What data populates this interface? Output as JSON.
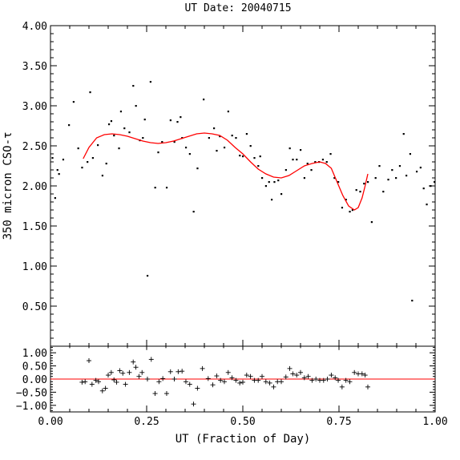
{
  "chart_data": [
    {
      "type": "scatter",
      "title": "UT Date: 20040715",
      "ylabel": "350 micron CSO-τ",
      "xlim": [
        0.0,
        1.0
      ],
      "ylim": [
        0.0,
        4.0
      ],
      "yticks": [
        "4.00",
        "3.50",
        "3.00",
        "2.50",
        "2.00",
        "1.50",
        "1.00",
        "0.50"
      ],
      "ytick_values": [
        4.0,
        3.5,
        3.0,
        2.5,
        2.0,
        1.5,
        1.0,
        0.5
      ],
      "colors": {
        "points": "#000000",
        "fit": "#ff0000"
      },
      "series": [
        {
          "type": "scatter",
          "points": [
            [
              0.005,
              2.35
            ],
            [
              0.012,
              1.85
            ],
            [
              0.018,
              2.2
            ],
            [
              0.022,
              2.15
            ],
            [
              0.033,
              2.33
            ],
            [
              0.048,
              2.76
            ],
            [
              0.06,
              3.05
            ],
            [
              0.072,
              2.47
            ],
            [
              0.082,
              2.23
            ],
            [
              0.096,
              2.3
            ],
            [
              0.103,
              3.17
            ],
            [
              0.11,
              2.35
            ],
            [
              0.123,
              2.51
            ],
            [
              0.135,
              2.13
            ],
            [
              0.145,
              2.28
            ],
            [
              0.152,
              2.77
            ],
            [
              0.158,
              2.81
            ],
            [
              0.165,
              2.63
            ],
            [
              0.178,
              2.47
            ],
            [
              0.183,
              2.93
            ],
            [
              0.192,
              2.72
            ],
            [
              0.205,
              2.67
            ],
            [
              0.215,
              3.25
            ],
            [
              0.222,
              3.0
            ],
            [
              0.232,
              2.57
            ],
            [
              0.24,
              2.6
            ],
            [
              0.245,
              2.83
            ],
            [
              0.252,
              0.88
            ],
            [
              0.26,
              3.3
            ],
            [
              0.272,
              1.98
            ],
            [
              0.28,
              2.42
            ],
            [
              0.29,
              2.55
            ],
            [
              0.302,
              1.98
            ],
            [
              0.312,
              2.82
            ],
            [
              0.322,
              2.55
            ],
            [
              0.33,
              2.8
            ],
            [
              0.338,
              2.86
            ],
            [
              0.342,
              2.6
            ],
            [
              0.352,
              2.48
            ],
            [
              0.362,
              2.4
            ],
            [
              0.372,
              1.68
            ],
            [
              0.382,
              2.22
            ],
            [
              0.398,
              3.08
            ],
            [
              0.412,
              2.6
            ],
            [
              0.425,
              2.72
            ],
            [
              0.432,
              2.44
            ],
            [
              0.44,
              2.62
            ],
            [
              0.452,
              2.48
            ],
            [
              0.462,
              2.93
            ],
            [
              0.472,
              2.63
            ],
            [
              0.482,
              2.6
            ],
            [
              0.492,
              2.38
            ],
            [
              0.5,
              2.37
            ],
            [
              0.51,
              2.65
            ],
            [
              0.52,
              2.5
            ],
            [
              0.53,
              2.35
            ],
            [
              0.54,
              2.25
            ],
            [
              0.545,
              2.37
            ],
            [
              0.55,
              2.1
            ],
            [
              0.56,
              2.0
            ],
            [
              0.568,
              2.05
            ],
            [
              0.575,
              1.83
            ],
            [
              0.582,
              2.05
            ],
            [
              0.592,
              2.07
            ],
            [
              0.6,
              1.9
            ],
            [
              0.612,
              2.2
            ],
            [
              0.622,
              2.47
            ],
            [
              0.63,
              2.33
            ],
            [
              0.64,
              2.33
            ],
            [
              0.65,
              2.45
            ],
            [
              0.66,
              2.1
            ],
            [
              0.668,
              2.28
            ],
            [
              0.678,
              2.2
            ],
            [
              0.688,
              2.3
            ],
            [
              0.698,
              2.3
            ],
            [
              0.708,
              2.33
            ],
            [
              0.718,
              2.3
            ],
            [
              0.728,
              2.4
            ],
            [
              0.738,
              2.1
            ],
            [
              0.748,
              2.05
            ],
            [
              0.758,
              1.73
            ],
            [
              0.768,
              1.83
            ],
            [
              0.778,
              1.68
            ],
            [
              0.785,
              1.7
            ],
            [
              0.795,
              1.95
            ],
            [
              0.805,
              1.93
            ],
            [
              0.815,
              2.03
            ],
            [
              0.825,
              2.05
            ],
            [
              0.835,
              1.55
            ],
            [
              0.845,
              2.1
            ],
            [
              0.855,
              2.25
            ],
            [
              0.865,
              1.93
            ],
            [
              0.878,
              2.08
            ],
            [
              0.888,
              2.2
            ],
            [
              0.898,
              2.1
            ],
            [
              0.908,
              2.25
            ],
            [
              0.918,
              2.65
            ],
            [
              0.925,
              2.13
            ],
            [
              0.935,
              2.4
            ],
            [
              0.94,
              0.57
            ],
            [
              0.952,
              2.18
            ],
            [
              0.962,
              2.23
            ],
            [
              0.97,
              1.97
            ],
            [
              0.978,
              1.77
            ],
            [
              0.988,
              2.0
            ],
            [
              0.998,
              2.05
            ]
          ]
        },
        {
          "type": "line",
          "points": [
            [
              0.085,
              2.34
            ],
            [
              0.1,
              2.48
            ],
            [
              0.12,
              2.6
            ],
            [
              0.14,
              2.64
            ],
            [
              0.16,
              2.65
            ],
            [
              0.18,
              2.64
            ],
            [
              0.2,
              2.62
            ],
            [
              0.22,
              2.59
            ],
            [
              0.24,
              2.56
            ],
            [
              0.26,
              2.54
            ],
            [
              0.28,
              2.53
            ],
            [
              0.3,
              2.54
            ],
            [
              0.32,
              2.56
            ],
            [
              0.34,
              2.59
            ],
            [
              0.36,
              2.62
            ],
            [
              0.38,
              2.65
            ],
            [
              0.4,
              2.66
            ],
            [
              0.42,
              2.65
            ],
            [
              0.44,
              2.63
            ],
            [
              0.46,
              2.57
            ],
            [
              0.48,
              2.48
            ],
            [
              0.5,
              2.4
            ],
            [
              0.52,
              2.3
            ],
            [
              0.54,
              2.21
            ],
            [
              0.56,
              2.15
            ],
            [
              0.58,
              2.11
            ],
            [
              0.6,
              2.1
            ],
            [
              0.62,
              2.13
            ],
            [
              0.64,
              2.19
            ],
            [
              0.66,
              2.25
            ],
            [
              0.68,
              2.28
            ],
            [
              0.7,
              2.3
            ],
            [
              0.715,
              2.28
            ],
            [
              0.73,
              2.22
            ],
            [
              0.745,
              2.05
            ],
            [
              0.76,
              1.88
            ],
            [
              0.775,
              1.75
            ],
            [
              0.79,
              1.7
            ],
            [
              0.8,
              1.73
            ],
            [
              0.81,
              1.85
            ],
            [
              0.818,
              2.0
            ],
            [
              0.825,
              2.15
            ]
          ]
        }
      ]
    },
    {
      "type": "scatter",
      "xlabel": "UT (Fraction of Day)",
      "xlim": [
        0.0,
        1.0
      ],
      "ylim": [
        -1.25,
        1.25
      ],
      "xticks": [
        "0.00",
        "0.25",
        "0.50",
        "0.75",
        "1.00"
      ],
      "xtick_values": [
        0.0,
        0.25,
        0.5,
        0.75,
        1.0
      ],
      "yticks": [
        "1.00",
        "0.50",
        "0.00",
        "−0.50",
        "−1.00"
      ],
      "ytick_values": [
        1.0,
        0.5,
        0.0,
        -0.5,
        -1.0
      ],
      "colors": {
        "points": "#000000",
        "zero_line": "#ff0000"
      },
      "residuals": [
        [
          0.082,
          -0.12
        ],
        [
          0.09,
          -0.1
        ],
        [
          0.1,
          0.7
        ],
        [
          0.108,
          -0.2
        ],
        [
          0.118,
          -0.05
        ],
        [
          0.125,
          -0.1
        ],
        [
          0.135,
          -0.45
        ],
        [
          0.143,
          -0.35
        ],
        [
          0.15,
          0.15
        ],
        [
          0.158,
          0.25
        ],
        [
          0.165,
          -0.03
        ],
        [
          0.172,
          -0.12
        ],
        [
          0.18,
          0.32
        ],
        [
          0.188,
          0.22
        ],
        [
          0.195,
          -0.2
        ],
        [
          0.205,
          0.25
        ],
        [
          0.215,
          0.65
        ],
        [
          0.222,
          0.45
        ],
        [
          0.23,
          0.1
        ],
        [
          0.238,
          0.25
        ],
        [
          0.252,
          0.0
        ],
        [
          0.262,
          0.75
        ],
        [
          0.272,
          -0.55
        ],
        [
          0.282,
          -0.1
        ],
        [
          0.292,
          0.02
        ],
        [
          0.302,
          -0.55
        ],
        [
          0.312,
          0.28
        ],
        [
          0.322,
          0.0
        ],
        [
          0.332,
          0.28
        ],
        [
          0.342,
          0.3
        ],
        [
          0.352,
          -0.1
        ],
        [
          0.362,
          -0.2
        ],
        [
          0.372,
          -0.95
        ],
        [
          0.382,
          -0.35
        ],
        [
          0.395,
          0.4
        ],
        [
          0.41,
          0.02
        ],
        [
          0.422,
          -0.22
        ],
        [
          0.432,
          0.12
        ],
        [
          0.442,
          -0.05
        ],
        [
          0.452,
          -0.1
        ],
        [
          0.462,
          0.25
        ],
        [
          0.472,
          0.05
        ],
        [
          0.482,
          -0.05
        ],
        [
          0.492,
          -0.15
        ],
        [
          0.5,
          -0.12
        ],
        [
          0.51,
          0.15
        ],
        [
          0.52,
          0.1
        ],
        [
          0.53,
          -0.05
        ],
        [
          0.54,
          -0.05
        ],
        [
          0.55,
          0.1
        ],
        [
          0.56,
          -0.1
        ],
        [
          0.57,
          -0.15
        ],
        [
          0.58,
          -0.3
        ],
        [
          0.59,
          -0.1
        ],
        [
          0.6,
          -0.1
        ],
        [
          0.612,
          0.08
        ],
        [
          0.622,
          0.4
        ],
        [
          0.63,
          0.2
        ],
        [
          0.64,
          0.15
        ],
        [
          0.65,
          0.25
        ],
        [
          0.66,
          0.05
        ],
        [
          0.67,
          0.1
        ],
        [
          0.68,
          -0.05
        ],
        [
          0.69,
          0.0
        ],
        [
          0.7,
          -0.05
        ],
        [
          0.71,
          -0.05
        ],
        [
          0.72,
          0.0
        ],
        [
          0.73,
          0.15
        ],
        [
          0.74,
          0.05
        ],
        [
          0.748,
          -0.05
        ],
        [
          0.758,
          -0.3
        ],
        [
          0.768,
          -0.05
        ],
        [
          0.778,
          -0.1
        ],
        [
          0.79,
          0.25
        ],
        [
          0.8,
          0.2
        ],
        [
          0.81,
          0.2
        ],
        [
          0.818,
          0.15
        ],
        [
          0.825,
          -0.3
        ]
      ]
    }
  ]
}
